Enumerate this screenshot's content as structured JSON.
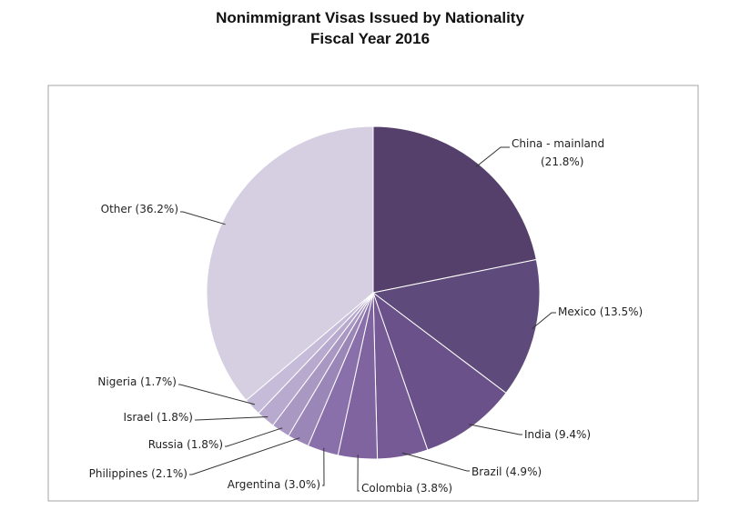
{
  "chart_data": {
    "type": "pie",
    "title": "Nonimmigrant Visas Issued by Nationality",
    "subtitle": "Fiscal Year 2016",
    "slices": [
      {
        "label": "China - mainland",
        "value": 21.8,
        "text_line1": "China - mainland",
        "text_line2": "(21.8%)",
        "color": "#54406a"
      },
      {
        "label": "Mexico",
        "value": 13.5,
        "text_line1": "Mexico (13.5%)",
        "color": "#5f4a7c"
      },
      {
        "label": "India",
        "value": 9.4,
        "text_line1": "India (9.4%)",
        "color": "#6b5189"
      },
      {
        "label": "Brazil",
        "value": 4.9,
        "text_line1": "Brazil (4.9%)",
        "color": "#755a96"
      },
      {
        "label": "Colombia",
        "value": 3.8,
        "text_line1": "Colombia (3.8%)",
        "color": "#7f64a0"
      },
      {
        "label": "Argentina",
        "value": 3.0,
        "text_line1": "Argentina (3.0%)",
        "color": "#8a70ab"
      },
      {
        "label": "Philippines",
        "value": 2.1,
        "text_line1": "Philippines (2.1%)",
        "color": "#9b86b8"
      },
      {
        "label": "Russia",
        "value": 1.8,
        "text_line1": "Russia (1.8%)",
        "color": "#a998c2"
      },
      {
        "label": "Israel",
        "value": 1.8,
        "text_line1": "Israel (1.8%)",
        "color": "#b8aace"
      },
      {
        "label": "Nigeria",
        "value": 1.7,
        "text_line1": "Nigeria (1.7%)",
        "color": "#c6bbd8"
      },
      {
        "label": "Other",
        "value": 36.2,
        "text_line1": "Other (36.2%)",
        "color": "#d5cfe1"
      }
    ]
  }
}
